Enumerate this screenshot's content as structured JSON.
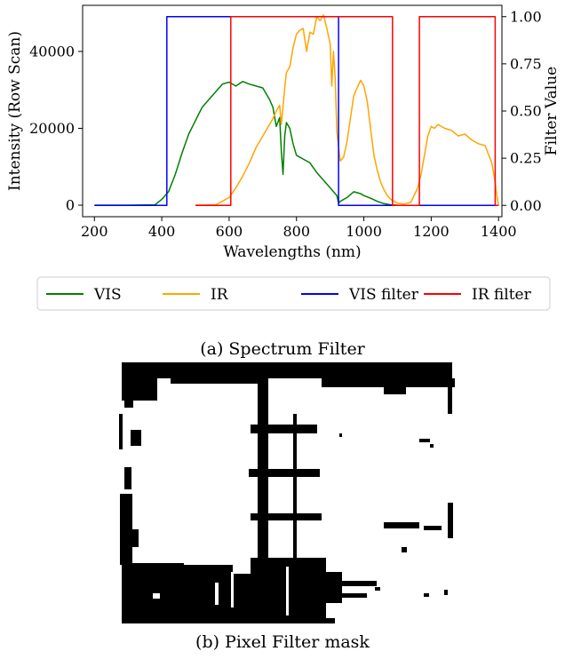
{
  "chart_data": {
    "type": "line",
    "xlabel": "Wavelengths (nm)",
    "ylabel": "Intensity (Row Scan)",
    "y2label": "Filter Value",
    "xlim": [
      165,
      1410
    ],
    "ylim": [
      -3000,
      52000
    ],
    "y2lim": [
      -0.06,
      1.06
    ],
    "x_ticks": [
      200,
      400,
      600,
      800,
      1000,
      1200,
      1400
    ],
    "y_ticks": [
      0,
      20000,
      40000
    ],
    "y2_ticks": [
      0.0,
      0.25,
      0.5,
      0.75,
      1.0
    ],
    "y2_tick_labels": [
      "0.00",
      "0.25",
      "0.50",
      "0.75",
      "1.00"
    ],
    "legend_position": "bottom",
    "series": [
      {
        "name": "VIS",
        "color": "#008000",
        "axis": "left",
        "x": [
          200,
          300,
          380,
          400,
          420,
          440,
          460,
          480,
          500,
          520,
          540,
          560,
          580,
          600,
          620,
          640,
          660,
          680,
          700,
          710,
          720,
          730,
          740,
          750,
          755,
          760,
          765,
          770,
          780,
          790,
          800,
          820,
          840,
          860,
          880,
          900,
          910,
          920,
          925,
          930,
          950,
          970,
          990,
          1000,
          1020,
          1040,
          1060,
          1080,
          1100
        ],
        "y": [
          0,
          0,
          100,
          1500,
          3500,
          8000,
          13500,
          18500,
          22000,
          25500,
          27500,
          29500,
          31500,
          32000,
          31000,
          32200,
          31500,
          31000,
          30500,
          29000,
          27500,
          25500,
          20500,
          22800,
          14000,
          8000,
          18000,
          21500,
          20000,
          16000,
          13000,
          12000,
          11000,
          8500,
          6500,
          4500,
          3500,
          2500,
          500,
          1000,
          2000,
          3500,
          3000,
          2500,
          1800,
          1000,
          400,
          100,
          0
        ]
      },
      {
        "name": "IR",
        "color": "#FFA500",
        "axis": "left",
        "x": [
          500,
          560,
          600,
          620,
          640,
          660,
          680,
          700,
          720,
          730,
          740,
          750,
          755,
          760,
          765,
          770,
          780,
          790,
          800,
          810,
          820,
          830,
          840,
          850,
          860,
          870,
          880,
          890,
          900,
          905,
          910,
          915,
          920,
          930,
          940,
          950,
          960,
          970,
          980,
          990,
          1000,
          1010,
          1020,
          1030,
          1040,
          1050,
          1060,
          1070,
          1080,
          1090,
          1100,
          1120,
          1140,
          1160,
          1170,
          1180,
          1190,
          1200,
          1210,
          1220,
          1240,
          1260,
          1280,
          1300,
          1320,
          1340,
          1360,
          1380,
          1390,
          1395,
          1400
        ],
        "y": [
          0,
          100,
          2000,
          4500,
          7500,
          11000,
          15000,
          18000,
          21000,
          22500,
          24500,
          26000,
          21000,
          25500,
          30500,
          34500,
          36000,
          41000,
          44500,
          45500,
          46000,
          40000,
          45000,
          44500,
          49000,
          48000,
          49500,
          46000,
          42000,
          31000,
          40000,
          33000,
          19000,
          11500,
          12500,
          16500,
          22500,
          28500,
          30500,
          32500,
          31000,
          27000,
          20000,
          13000,
          9000,
          6000,
          4000,
          2500,
          1500,
          1000,
          500,
          300,
          800,
          4500,
          8000,
          13000,
          18000,
          20500,
          20000,
          21000,
          20000,
          19500,
          18000,
          18500,
          17000,
          16000,
          15500,
          11000,
          6000,
          2500,
          0
        ]
      },
      {
        "name": "VIS filter",
        "color": "#0000ff",
        "axis": "right",
        "x": [
          200,
          415,
          415,
          925,
          925,
          1400
        ],
        "y": [
          0,
          0,
          1,
          1,
          0,
          0
        ]
      },
      {
        "name": "IR filter",
        "color": "#ff0000",
        "axis": "right",
        "x": [
          500,
          605,
          605,
          1085,
          1085,
          1165,
          1165,
          1390,
          1390,
          1400
        ],
        "y": [
          0,
          0,
          1,
          1,
          0,
          0,
          1,
          1,
          0,
          0
        ]
      }
    ]
  },
  "captions": {
    "a": "(a) Spectrum Filter",
    "b": "(b) Pixel Filter mask"
  }
}
